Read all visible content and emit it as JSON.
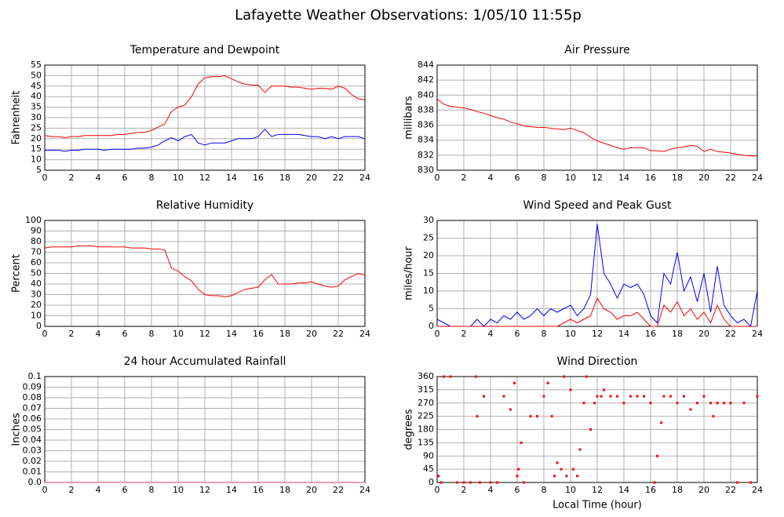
{
  "title": "Lafayette Weather Observations: 1/05/10 11:55p",
  "chart_data": [
    {
      "type": "line",
      "title": "Temperature and Dewpoint",
      "ylabel": "Fahrenheit",
      "x": [
        0,
        0.5,
        1,
        1.5,
        2,
        2.5,
        3,
        3.5,
        4,
        4.5,
        5,
        5.5,
        6,
        6.5,
        7,
        7.5,
        8,
        8.5,
        9,
        9.5,
        10,
        10.5,
        11,
        11.5,
        12,
        12.5,
        13,
        13.5,
        14,
        14.5,
        15,
        15.5,
        16,
        16.5,
        17,
        17.5,
        18,
        18.5,
        19,
        19.5,
        20,
        20.5,
        21,
        21.5,
        22,
        22.5,
        23,
        23.5,
        24
      ],
      "series": [
        {
          "color": "#ff0000",
          "values": [
            21.5,
            21,
            21,
            20.5,
            21,
            21,
            21.5,
            21.5,
            21.5,
            21.5,
            21.5,
            22,
            22,
            22.5,
            23,
            23,
            24,
            25.5,
            27,
            33,
            35,
            36,
            40,
            46,
            49,
            49.5,
            49.5,
            50,
            48.5,
            47,
            46,
            45.5,
            45.5,
            42,
            45,
            45,
            45,
            44.5,
            44.5,
            44,
            43.5,
            44,
            44,
            43.5,
            45,
            44,
            41,
            39,
            38.5
          ]
        },
        {
          "color": "#0000ff",
          "values": [
            14.5,
            14.5,
            14.5,
            14,
            14.5,
            14.5,
            15,
            15,
            15,
            14.5,
            15,
            15,
            15,
            15,
            15.5,
            15.5,
            16,
            17,
            19,
            20.5,
            19,
            21,
            22,
            18,
            17,
            18,
            18,
            18,
            19,
            20,
            20,
            20,
            21,
            24.5,
            21,
            22,
            22,
            22,
            22,
            21.5,
            21,
            21,
            20,
            21,
            20,
            21,
            21,
            21,
            20
          ]
        }
      ],
      "xlim": [
        0,
        24
      ],
      "xticks": [
        0,
        2,
        4,
        6,
        8,
        10,
        12,
        14,
        16,
        18,
        20,
        22,
        24
      ],
      "ylim": [
        5,
        55
      ],
      "yticks": [
        5,
        10,
        15,
        20,
        25,
        30,
        35,
        40,
        45,
        50,
        55
      ],
      "grid": true
    },
    {
      "type": "line",
      "title": "Air Pressure",
      "ylabel": "millibars",
      "x": [
        0,
        0.5,
        1,
        1.5,
        2,
        2.5,
        3,
        3.5,
        4,
        4.5,
        5,
        5.5,
        6,
        6.5,
        7,
        7.5,
        8,
        8.5,
        9,
        9.5,
        10,
        10.5,
        11,
        11.5,
        12,
        12.5,
        13,
        13.5,
        14,
        14.5,
        15,
        15.5,
        16,
        16.5,
        17,
        17.5,
        18,
        18.5,
        19,
        19.5,
        20,
        20.5,
        21,
        21.5,
        22,
        22.5,
        23,
        23.5,
        24
      ],
      "series": [
        {
          "color": "#ff0000",
          "values": [
            839.5,
            838.8,
            838.5,
            838.4,
            838.3,
            838.1,
            837.8,
            837.6,
            837.3,
            837,
            836.8,
            836.4,
            836.2,
            835.9,
            835.8,
            835.7,
            835.7,
            835.6,
            835.5,
            835.4,
            835.6,
            835.3,
            835,
            834.4,
            833.9,
            833.6,
            833.3,
            833,
            832.8,
            833,
            833,
            833,
            832.6,
            832.6,
            832.5,
            832.8,
            833,
            833.1,
            833.3,
            833.2,
            832.5,
            832.8,
            832.5,
            832.4,
            832.3,
            832.1,
            832,
            831.9,
            831.9
          ]
        }
      ],
      "xlim": [
        0,
        24
      ],
      "xticks": [
        0,
        2,
        4,
        6,
        8,
        10,
        12,
        14,
        16,
        18,
        20,
        22,
        24
      ],
      "ylim": [
        830,
        844
      ],
      "yticks": [
        830,
        832,
        834,
        836,
        838,
        840,
        842,
        844
      ],
      "grid": true
    },
    {
      "type": "line",
      "title": "Relative Humidity",
      "ylabel": "Percent",
      "x": [
        0,
        0.5,
        1,
        1.5,
        2,
        2.5,
        3,
        3.5,
        4,
        4.5,
        5,
        5.5,
        6,
        6.5,
        7,
        7.5,
        8,
        8.5,
        9,
        9.5,
        10,
        10.5,
        11,
        11.5,
        12,
        12.5,
        13,
        13.5,
        14,
        14.5,
        15,
        15.5,
        16,
        16.5,
        17,
        17.5,
        18,
        18.5,
        19,
        19.5,
        20,
        20.5,
        21,
        21.5,
        22,
        22.5,
        23,
        23.5,
        24
      ],
      "series": [
        {
          "color": "#ff0000",
          "values": [
            74,
            75,
            75,
            75,
            75,
            76,
            76,
            76,
            75,
            75,
            75,
            75,
            75,
            74,
            74,
            74,
            73,
            73,
            72,
            55,
            52,
            47,
            43,
            35,
            30,
            29,
            29,
            28,
            29,
            32,
            35,
            36,
            37,
            44,
            49,
            40,
            40,
            40,
            41,
            41,
            42,
            40,
            38,
            37,
            38,
            44,
            47,
            50,
            48
          ]
        }
      ],
      "xlim": [
        0,
        24
      ],
      "xticks": [
        0,
        2,
        4,
        6,
        8,
        10,
        12,
        14,
        16,
        18,
        20,
        22,
        24
      ],
      "ylim": [
        0,
        100
      ],
      "yticks": [
        0,
        10,
        20,
        30,
        40,
        50,
        60,
        70,
        80,
        90,
        100
      ],
      "grid": true
    },
    {
      "type": "line",
      "title": "Wind Speed and Peak Gust",
      "ylabel": "miles/hour",
      "x": [
        0,
        0.5,
        1,
        1.5,
        2,
        2.5,
        3,
        3.5,
        4,
        4.5,
        5,
        5.5,
        6,
        6.5,
        7,
        7.5,
        8,
        8.5,
        9,
        9.5,
        10,
        10.5,
        11,
        11.5,
        12,
        12.5,
        13,
        13.5,
        14,
        14.5,
        15,
        15.5,
        16,
        16.5,
        17,
        17.5,
        18,
        18.5,
        19,
        19.5,
        20,
        20.5,
        21,
        21.5,
        22,
        22.5,
        23,
        23.5,
        24
      ],
      "series": [
        {
          "color": "#0000ff",
          "values": [
            2,
            1,
            0,
            0,
            0,
            0,
            2,
            0,
            2,
            1,
            3,
            2,
            4,
            2,
            3,
            5,
            3,
            5,
            4,
            5,
            6,
            3,
            5,
            9,
            29,
            15,
            12,
            8,
            12,
            11,
            12,
            9,
            3,
            1,
            15,
            12,
            21,
            10,
            14,
            7,
            15,
            4,
            17,
            6,
            3,
            1,
            2,
            0,
            10
          ]
        },
        {
          "color": "#ff0000",
          "values": [
            0,
            0,
            0,
            0,
            0,
            0,
            0,
            0,
            0,
            0,
            0,
            0,
            0,
            0,
            0,
            0,
            0,
            0,
            0,
            1,
            2,
            1,
            2,
            3,
            8,
            5,
            4,
            2,
            3,
            3,
            4,
            2,
            0,
            0,
            6,
            4,
            7,
            3,
            5,
            2,
            4,
            1,
            6,
            2,
            0,
            0,
            0,
            0,
            0
          ]
        }
      ],
      "xlim": [
        0,
        24
      ],
      "xticks": [
        0,
        2,
        4,
        6,
        8,
        10,
        12,
        14,
        16,
        18,
        20,
        22,
        24
      ],
      "ylim": [
        0,
        30
      ],
      "yticks": [
        0,
        5,
        10,
        15,
        20,
        25,
        30
      ],
      "grid": true
    },
    {
      "type": "line",
      "title": "24 hour Accumulated Rainfall",
      "ylabel": "Inches",
      "x": [
        0,
        24
      ],
      "series": [
        {
          "color": "#e04060",
          "values": [
            0,
            0
          ]
        }
      ],
      "xlim": [
        0,
        24
      ],
      "xticks": [
        0,
        2,
        4,
        6,
        8,
        10,
        12,
        14,
        16,
        18,
        20,
        22,
        24
      ],
      "ylim": [
        0,
        0.1
      ],
      "yticks": [
        {
          "value": 0,
          "label": "0.0"
        },
        0.01,
        0.02,
        0.03,
        0.04,
        0.05,
        0.06,
        0.07,
        0.08,
        0.09,
        0.1
      ],
      "grid": true
    },
    {
      "type": "scatter",
      "title": "Wind Direction",
      "ylabel": "degrees",
      "xlabel": "Local Time (hour)",
      "x": [
        0.1,
        0.3,
        0.5,
        1,
        1.5,
        2,
        2.5,
        2.9,
        3,
        3.2,
        3.5,
        4,
        4.5,
        5,
        5.5,
        5.8,
        6,
        6.1,
        6.3,
        6.5,
        7,
        7.5,
        8,
        8.3,
        8.6,
        8.8,
        9,
        9.3,
        9.5,
        9.7,
        10,
        10.2,
        10.5,
        10.7,
        11,
        11.2,
        11.5,
        11.8,
        12,
        12.3,
        12.5,
        13,
        13.5,
        14,
        14.5,
        15,
        15.5,
        16,
        16.3,
        16.5,
        16.8,
        17,
        17.5,
        18,
        18.5,
        19,
        19.5,
        20,
        20.5,
        20.7,
        21,
        21.5,
        22,
        22.5,
        23,
        23.5,
        24
      ],
      "values": [
        22,
        0,
        360,
        360,
        0,
        0,
        0,
        360,
        225,
        0,
        293,
        0,
        0,
        293,
        248,
        338,
        22,
        45,
        135,
        0,
        225,
        225,
        293,
        338,
        225,
        22,
        67,
        45,
        360,
        22,
        315,
        45,
        22,
        112,
        270,
        360,
        180,
        270,
        293,
        293,
        315,
        293,
        293,
        270,
        293,
        293,
        293,
        270,
        0,
        90,
        203,
        293,
        293,
        270,
        293,
        248,
        270,
        293,
        270,
        225,
        270,
        270,
        270,
        0,
        270,
        0,
        293
      ],
      "color": "#ff0000",
      "xlim": [
        0,
        24
      ],
      "xticks": [
        0,
        2,
        4,
        6,
        8,
        10,
        12,
        14,
        16,
        18,
        20,
        22,
        24
      ],
      "ylim": [
        0,
        360
      ],
      "yticks": [
        0,
        45,
        90,
        135,
        180,
        225,
        270,
        315,
        360
      ],
      "grid": true
    }
  ]
}
